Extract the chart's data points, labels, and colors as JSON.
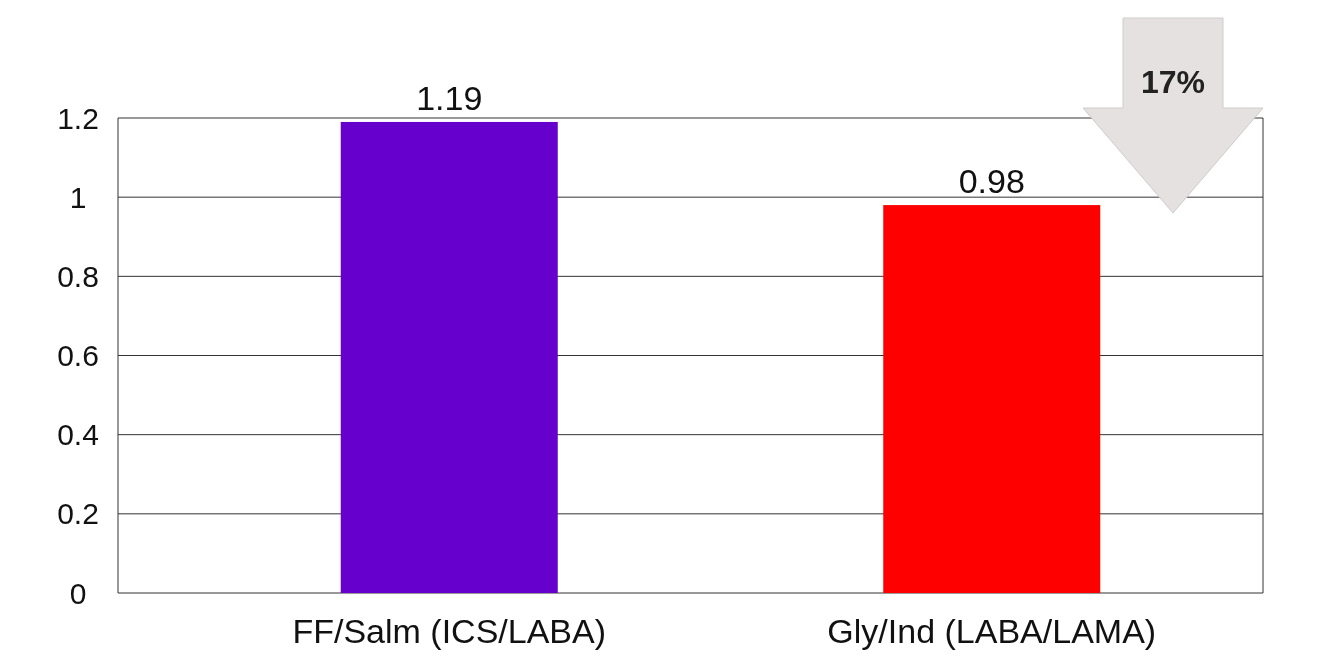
{
  "chart_data": {
    "type": "bar",
    "categories": [
      "FF/Salm (ICS/LABA)",
      "Gly/Ind (LABA/LAMA)"
    ],
    "values": [
      1.19,
      0.98
    ],
    "colors": [
      "#6600cc",
      "#ff0000"
    ],
    "ylim": [
      0,
      1.2
    ],
    "yticks": [
      0,
      0.2,
      0.4,
      0.6,
      0.8,
      1,
      1.2
    ],
    "grid": "y",
    "data_labels": true,
    "annotations": [
      "17%"
    ]
  }
}
